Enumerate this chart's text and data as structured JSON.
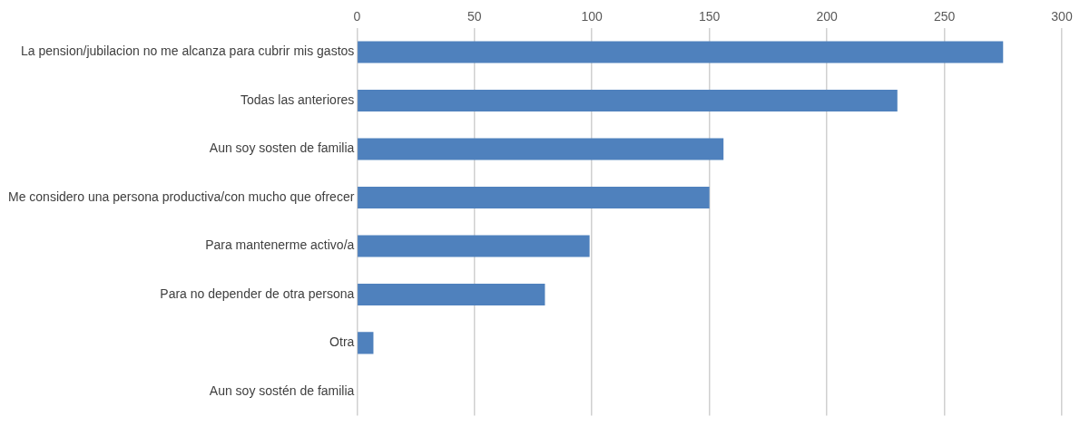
{
  "chart_data": {
    "type": "bar",
    "orientation": "horizontal",
    "categories": [
      "La pension/jubilacion no me alcanza para cubrir mis gastos",
      "Todas las anteriores",
      "Aun soy sosten de familia",
      "Me considero una persona productiva/con mucho que ofrecer",
      "Para mantenerme activo/a",
      "Para no depender de otra persona",
      "Otra",
      "Aun soy sostén de familia"
    ],
    "values": [
      275,
      230,
      156,
      150,
      99,
      80,
      7,
      0
    ],
    "color": "#4f81bd",
    "xlim": [
      0,
      300
    ],
    "xticks": [
      0,
      50,
      100,
      150,
      200,
      250,
      300
    ],
    "grid": "x",
    "legend": false
  }
}
